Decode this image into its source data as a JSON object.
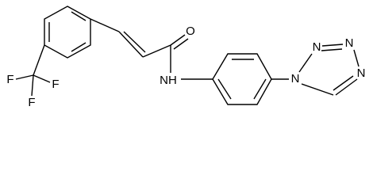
{
  "atoms": [
    {
      "label": "O"
    },
    {
      "label": "NH"
    },
    {
      "label": "N"
    },
    {
      "label": "N"
    },
    {
      "label": "N"
    },
    {
      "label": "N"
    },
    {
      "label": "F"
    },
    {
      "label": "F"
    },
    {
      "label": "F"
    }
  ]
}
